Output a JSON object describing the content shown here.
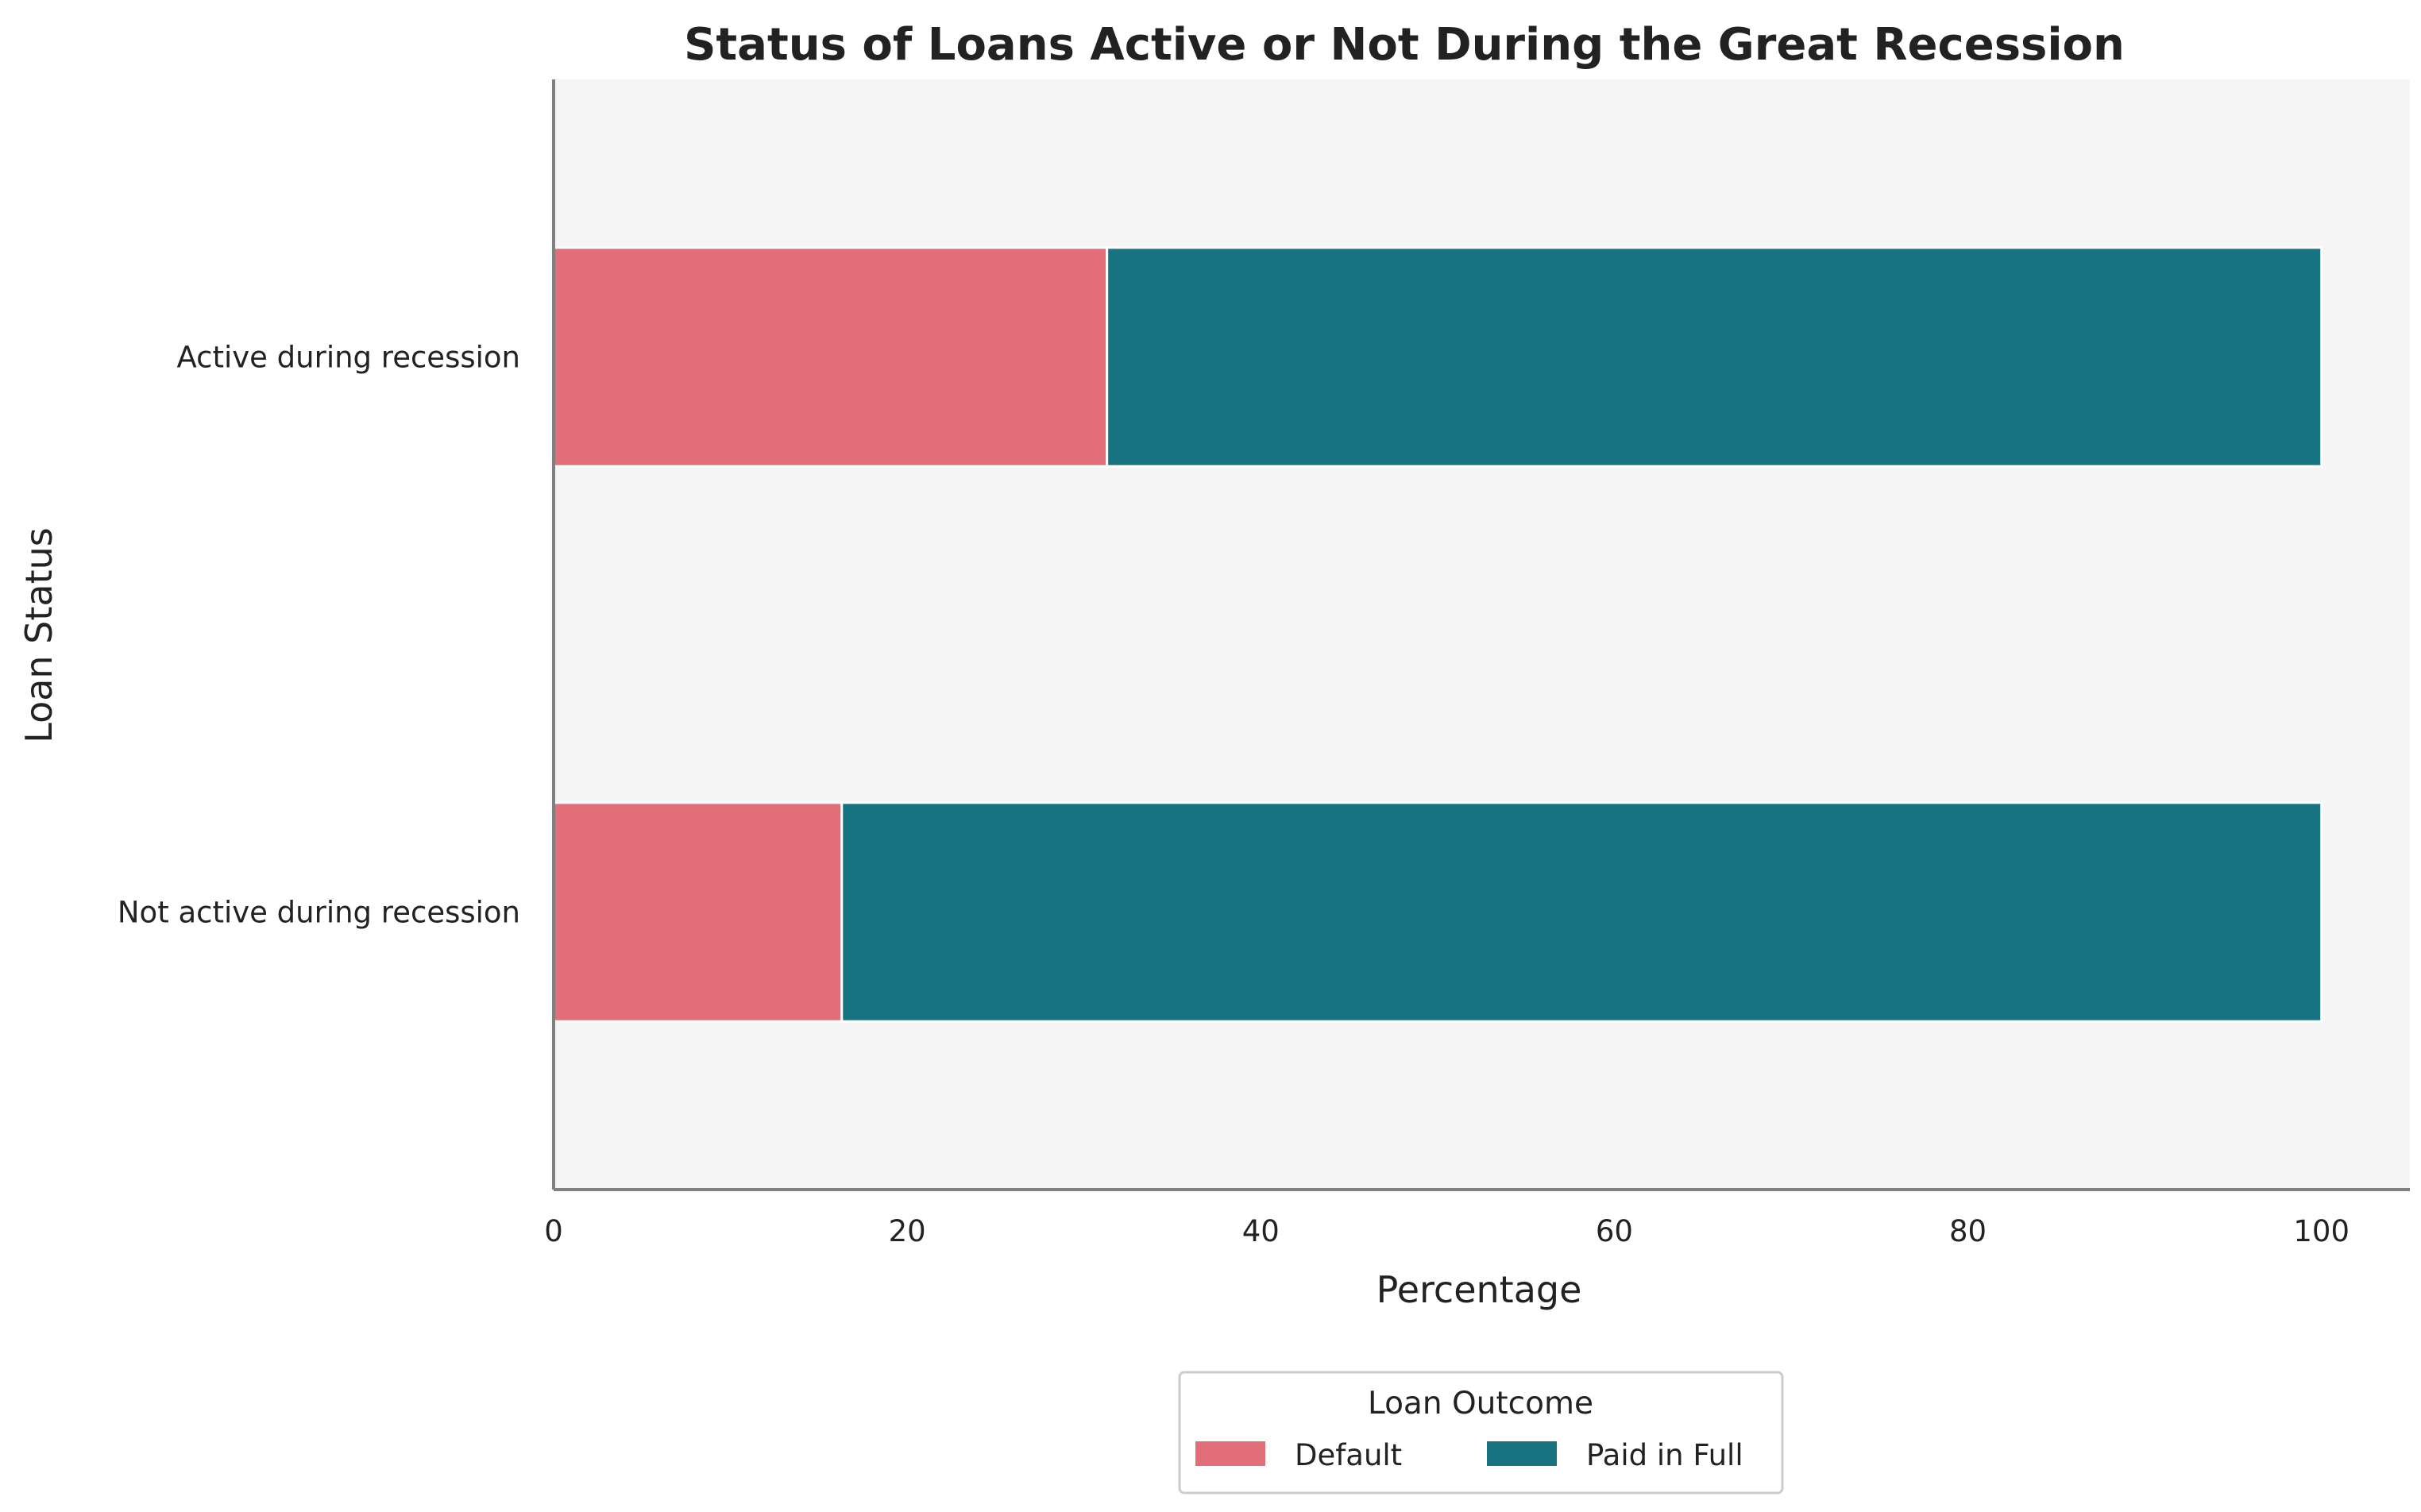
{
  "chart_data": {
    "type": "bar",
    "orientation": "horizontal",
    "stacked": true,
    "title": "Status of Loans Active or Not During the Great Recession",
    "xlabel": "Percentage",
    "ylabel": "Loan Status",
    "xlim": [
      0,
      105
    ],
    "xticks": [
      0,
      20,
      40,
      60,
      80,
      100
    ],
    "grid": false,
    "categories": [
      "Active during recession",
      "Not active during recession"
    ],
    "series": [
      {
        "name": "Default",
        "color": "#e26e7a",
        "values": [
          31.3,
          16.3
        ]
      },
      {
        "name": "Paid in Full",
        "color": "#16737f",
        "values": [
          68.7,
          83.7
        ]
      }
    ],
    "legend": {
      "title": "Loan Outcome",
      "placement": "bottom-center"
    },
    "plot_background": "#f5f5f5"
  }
}
